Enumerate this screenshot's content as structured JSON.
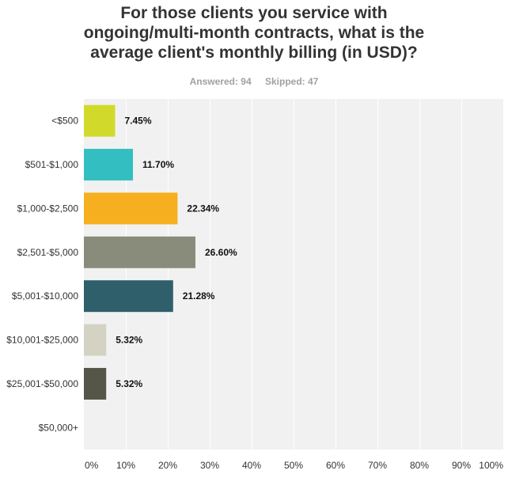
{
  "title_lines": [
    "For those clients you service with",
    "ongoing/multi-month contracts, what is the",
    "average client's monthly billing (in USD)?"
  ],
  "meta": {
    "answered": "Answered: 94",
    "skipped": "Skipped: 47"
  },
  "chart_data": {
    "type": "bar",
    "orientation": "horizontal",
    "title": "For those clients you service with ongoing/multi-month contracts, what is the average client's monthly billing (in USD)?",
    "categories": [
      "<$500",
      "$501-$1,000",
      "$1,000-$2,500",
      "$2,501-$5,000",
      "$5,001-$10,000",
      "$10,001-$25,000",
      "$25,001-$50,000",
      "$50,000+"
    ],
    "values": [
      7.45,
      11.7,
      22.34,
      26.6,
      21.28,
      5.32,
      5.32,
      0
    ],
    "value_labels": [
      "7.45%",
      "11.70%",
      "22.34%",
      "26.60%",
      "21.28%",
      "5.32%",
      "5.32%",
      ""
    ],
    "colors": [
      "#d1da2a",
      "#33bfc2",
      "#f6af1e",
      "#8a8c7b",
      "#2e5f6b",
      "#d4d2c3",
      "#555647",
      "#cccccc"
    ],
    "xlim": [
      0,
      100
    ],
    "ticks": [
      0,
      10,
      20,
      30,
      40,
      50,
      60,
      70,
      80,
      90,
      100
    ],
    "tick_labels": [
      "0%",
      "10%",
      "20%",
      "30%",
      "40%",
      "50%",
      "60%",
      "70%",
      "80%",
      "90%",
      "100%"
    ],
    "xlabel": "",
    "ylabel": "",
    "grid": true,
    "background": "#f1f1f1"
  }
}
